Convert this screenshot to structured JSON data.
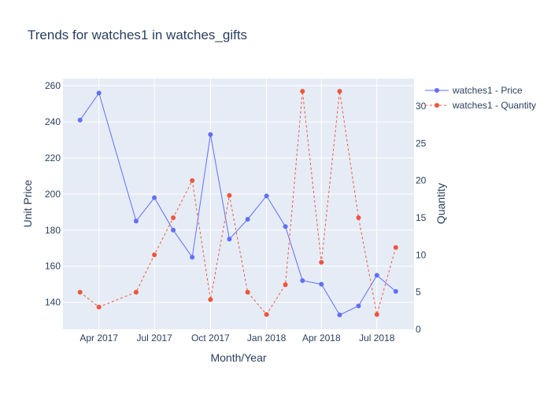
{
  "chart_data": {
    "type": "line",
    "title": "Trends for watches1 in watches_gifts",
    "xlabel": "Month/Year",
    "ylabel": "Unit Price",
    "y2label": "Quantity",
    "x_tick_labels": [
      "Apr 2017",
      "Jul 2017",
      "Oct 2017",
      "Jan 2018",
      "Apr 2018",
      "Jul 2018"
    ],
    "x_tick_dates": [
      "2017-04-01",
      "2017-07-01",
      "2017-10-01",
      "2018-01-01",
      "2018-04-01",
      "2018-07-01"
    ],
    "xlim": [
      "2017-02-01",
      "2018-08-31"
    ],
    "ylim": [
      125,
      264
    ],
    "y_ticks": [
      140,
      160,
      180,
      200,
      220,
      240,
      260
    ],
    "y2lim": [
      0,
      33.7
    ],
    "y2_ticks": [
      0,
      5,
      10,
      15,
      20,
      25,
      30
    ],
    "grid": true,
    "legend_position": "top-right",
    "x": [
      "2017-03-01",
      "2017-04-01",
      "2017-06-01",
      "2017-07-01",
      "2017-08-01",
      "2017-09-01",
      "2017-10-01",
      "2017-11-01",
      "2017-12-01",
      "2018-01-01",
      "2018-02-01",
      "2018-03-01",
      "2018-04-01",
      "2018-05-01",
      "2018-06-01",
      "2018-07-01",
      "2018-08-01"
    ],
    "series": [
      {
        "name": "watches1 - Price",
        "axis": "left",
        "color": "#636efa",
        "dash": "solid",
        "values": [
          241,
          256,
          185,
          198,
          180,
          165,
          233,
          175,
          186,
          199,
          182,
          152,
          150,
          133,
          138,
          155,
          146
        ]
      },
      {
        "name": "watches1 - Quantity",
        "axis": "right",
        "color": "#ef553b",
        "dash": "dashed",
        "values": [
          5,
          3,
          5,
          10,
          15,
          20,
          4,
          18,
          5,
          2,
          6,
          32,
          9,
          32,
          15,
          2,
          11
        ]
      }
    ]
  }
}
